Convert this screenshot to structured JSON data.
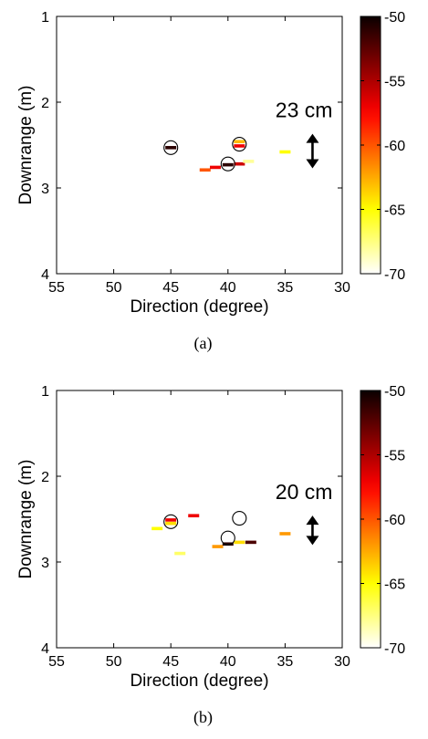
{
  "chart_data": [
    {
      "type": "scatter",
      "caption": "(a)",
      "xlabel": "Direction (degree)",
      "ylabel": "Downrange (m)",
      "xlim": [
        55,
        30
      ],
      "ylim": [
        1,
        4
      ],
      "x_ticks": [
        "55",
        "50",
        "45",
        "40",
        "35",
        "30"
      ],
      "y_ticks": [
        "1",
        "2",
        "3",
        "4"
      ],
      "colorbar": {
        "min": -70,
        "max": -50,
        "ticks": [
          "-50",
          "-55",
          "-60",
          "-65",
          "-70"
        ]
      },
      "annotation": {
        "label": "23 cm",
        "x": 32.6,
        "y": 2.57,
        "half_span": 0.18
      },
      "targets": [
        {
          "x": 45,
          "y": 2.53
        },
        {
          "x": 40,
          "y": 2.72
        },
        {
          "x": 39,
          "y": 2.49
        }
      ],
      "points": [
        {
          "x": 45.0,
          "y": 2.53,
          "v": -51
        },
        {
          "x": 42.0,
          "y": 2.79,
          "v": -60
        },
        {
          "x": 41.1,
          "y": 2.76,
          "v": -57
        },
        {
          "x": 40.0,
          "y": 2.73,
          "v": -51
        },
        {
          "x": 39.0,
          "y": 2.72,
          "v": -56
        },
        {
          "x": 38.2,
          "y": 2.69,
          "v": -68
        },
        {
          "x": 39.0,
          "y": 2.46,
          "v": -63
        },
        {
          "x": 39.0,
          "y": 2.51,
          "v": -57
        },
        {
          "x": 35.0,
          "y": 2.58,
          "v": -65
        }
      ]
    },
    {
      "type": "scatter",
      "caption": "(b)",
      "xlabel": "Direction (degree)",
      "ylabel": "Downrange (m)",
      "xlim": [
        55,
        30
      ],
      "ylim": [
        1,
        4
      ],
      "x_ticks": [
        "55",
        "50",
        "45",
        "40",
        "35",
        "30"
      ],
      "y_ticks": [
        "1",
        "2",
        "3",
        "4"
      ],
      "colorbar": {
        "min": -70,
        "max": -50,
        "ticks": [
          "-50",
          "-55",
          "-60",
          "-65",
          "-70"
        ]
      },
      "annotation": {
        "label": "20 cm",
        "x": 32.6,
        "y": 2.63,
        "half_span": 0.15
      },
      "targets": [
        {
          "x": 45,
          "y": 2.53
        },
        {
          "x": 40,
          "y": 2.72
        },
        {
          "x": 39,
          "y": 2.49
        }
      ],
      "points": [
        {
          "x": 46.2,
          "y": 2.61,
          "v": -65
        },
        {
          "x": 45.0,
          "y": 2.51,
          "v": -57
        },
        {
          "x": 45.0,
          "y": 2.55,
          "v": -64
        },
        {
          "x": 43.0,
          "y": 2.46,
          "v": -57
        },
        {
          "x": 44.2,
          "y": 2.9,
          "v": -67
        },
        {
          "x": 40.9,
          "y": 2.82,
          "v": -62
        },
        {
          "x": 40.0,
          "y": 2.79,
          "v": -51
        },
        {
          "x": 39.0,
          "y": 2.77,
          "v": -64
        },
        {
          "x": 38.0,
          "y": 2.77,
          "v": -52
        },
        {
          "x": 35.0,
          "y": 2.67,
          "v": -62
        }
      ]
    }
  ]
}
